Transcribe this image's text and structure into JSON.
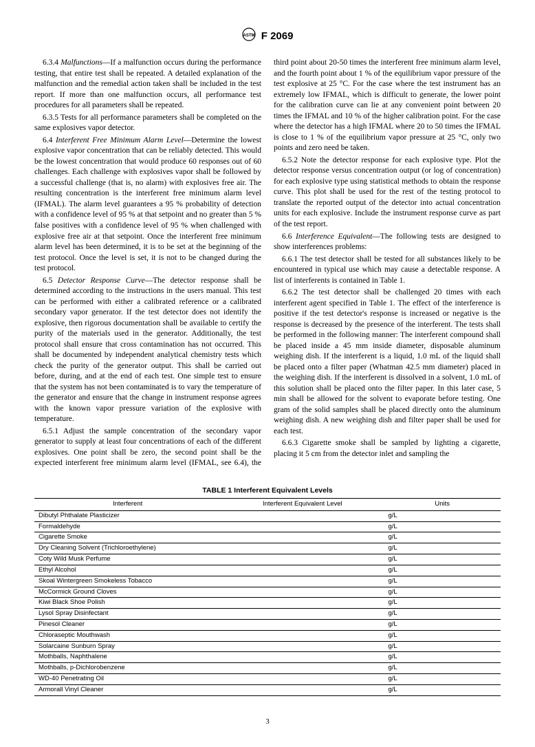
{
  "header": {
    "standard": "F 2069"
  },
  "paragraphs": {
    "p634_num": "6.3.4 ",
    "p634_title": "Malfunctions",
    "p634_text": "—If a malfunction occurs during the performance testing, that entire test shall be repeated. A detailed explanation of the malfunction and the remedial action taken shall be included in the test report. If more than one malfunction occurs, all performance test procedures for all parameters shall be repeated.",
    "p635": "6.3.5 Tests for all performance parameters shall be completed on the same explosives vapor detector.",
    "p64_num": "6.4 ",
    "p64_title": "Interferent Free Minimum Alarm Level",
    "p64_text": "—Determine the lowest explosive vapor concentration that can be reliably detected. This would be the lowest concentration that would produce 60 responses out of 60 challenges. Each challenge with explosives vapor shall be followed by a successful challenge (that is, no alarm) with explosives free air. The resulting concentration is the interferent free minimum alarm level (IFMAL). The alarm level guarantees a 95 % probability of detection with a confidence level of 95 % at that setpoint and no greater than 5 % false positives with a confidence level of 95 % when challenged with explosive free air at that setpoint. Once the interferent free minimum alarm level has been determined, it is to be set at the beginning of the test protocol. Once the level is set, it is not to be changed during the test protocol.",
    "p65_num": "6.5 ",
    "p65_title": "Detector Response Curve",
    "p65_text": "—The detector response shall be determined according to the instructions in the users manual. This test can be performed with either a calibrated reference or a calibrated secondary vapor generator. If the test detector does not identify the explosive, then rigorous documentation shall be available to certify the purity of the materials used in the generator. Additionally, the test protocol shall ensure that cross contamination has not occurred. This shall be documented by independent analytical chemistry tests which check the purity of the generator output. This shall be carried out before, during, and at the end of each test. One simple test to ensure that the system has not been contaminated is to vary the temperature of the generator and ensure that the change in instrument response agrees with the known vapor pressure variation of the explosive with temperature.",
    "p651": "6.5.1 Adjust the sample concentration of the secondary vapor generator to supply at least four concentrations of each of the different explosives. One point shall be zero, the second point shall be the expected interferent free minimum alarm level (IFMAL, see 6.4), the third point about 20-50 times the interferent free minimum alarm level, and the fourth point about 1 % of the equilibrium vapor pressure of the test explosive at 25 °C. For the case where the test instrument has an extremely low IFMAL, which is difficult to generate, the lower point for the calibration curve can lie at any convenient point between 20 times the IFMAL and 10 % of the higher calibration point. For the case where the detector has a high IFMAL where 20 to 50 times the IFMAL is close to 1 % of the equilibrium vapor pressure at 25 °C, only two points and zero need be taken.",
    "p652": "6.5.2 Note the detector response for each explosive type. Plot the detector response versus concentration output (or log of concentration) for each explosive type using statistical methods to obtain the response curve. This plot shall be used for the rest of the testing protocol to translate the reported output of the detector into actual concentration units for each explosive. Include the instrument response curve as part of the test report.",
    "p66_num": "6.6 ",
    "p66_title": "Interference Equivalent",
    "p66_text": "—The following tests are designed to show interferences problems:",
    "p661": "6.6.1 The test detector shall be tested for all substances likely to be encountered in typical use which may cause a detectable response. A list of interferents is contained in Table 1.",
    "p662": "6.6.2 The test detector shall be challenged 20 times with each interferent agent specified in Table 1. The effect of the interference is positive if the test detector's response is increased or negative is the response is decreased by the presence of the interferent. The tests shall be performed in the following manner: The interferent compound shall be placed inside a 45 mm inside diameter, disposable aluminum weighing dish. If the interferent is a liquid, 1.0 mL of the liquid shall be placed onto a filter paper (Whatman 42.5 mm diameter) placed in the weighing dish. If the interferent is dissolved in a solvent, 1.0 mL of this solution shall be placed onto the filter paper. In this later case, 5 min shall be allowed for the solvent to evaporate before testing. One gram of the solid samples shall be placed directly onto the aluminum weighing dish. A new weighing dish and filter paper shall be used for each test.",
    "p663": "6.6.3 Cigarette smoke shall be sampled by lighting a cigarette, placing it 5 cm from the detector inlet and sampling the"
  },
  "table": {
    "title": "TABLE 1  Interferent Equivalent Levels",
    "headers": [
      "Interferent",
      "Interferent Equivalent Level",
      "Units"
    ],
    "rows": [
      [
        "Dibutyl Phthalate Plasticizer",
        "",
        "g/L"
      ],
      [
        "Formaldehyde",
        "",
        "g/L"
      ],
      [
        "Cigarette Smoke",
        "",
        "g/L"
      ],
      [
        "Dry Cleaning Solvent (Trichloroethylene)",
        "",
        "g/L"
      ],
      [
        "Coty Wild Musk Perfume",
        "",
        "g/L"
      ],
      [
        "Ethyl Alcohol",
        "",
        "g/L"
      ],
      [
        "Skoal Wintergreen Smokeless Tobacco",
        "",
        "g/L"
      ],
      [
        "McCormick Ground Cloves",
        "",
        "g/L"
      ],
      [
        "Kiwi Black Shoe Polish",
        "",
        "g/L"
      ],
      [
        "Lysol Spray Disinfectant",
        "",
        "g/L"
      ],
      [
        "Pinesol Cleaner",
        "",
        "g/L"
      ],
      [
        "Chloraseptic Mouthwash",
        "",
        "g/L"
      ],
      [
        "Solarcaine Sunburn Spray",
        "",
        "g/L"
      ],
      [
        "Mothballs, Naphthalene",
        "",
        "g/L"
      ],
      [
        "Mothballs, p-Dichlorobenzene",
        "",
        "g/L"
      ],
      [
        "WD-40 Penetrating Oil",
        "",
        "g/L"
      ],
      [
        "Armorall Vinyl Cleaner",
        "",
        "g/L"
      ]
    ]
  },
  "page_number": "3"
}
